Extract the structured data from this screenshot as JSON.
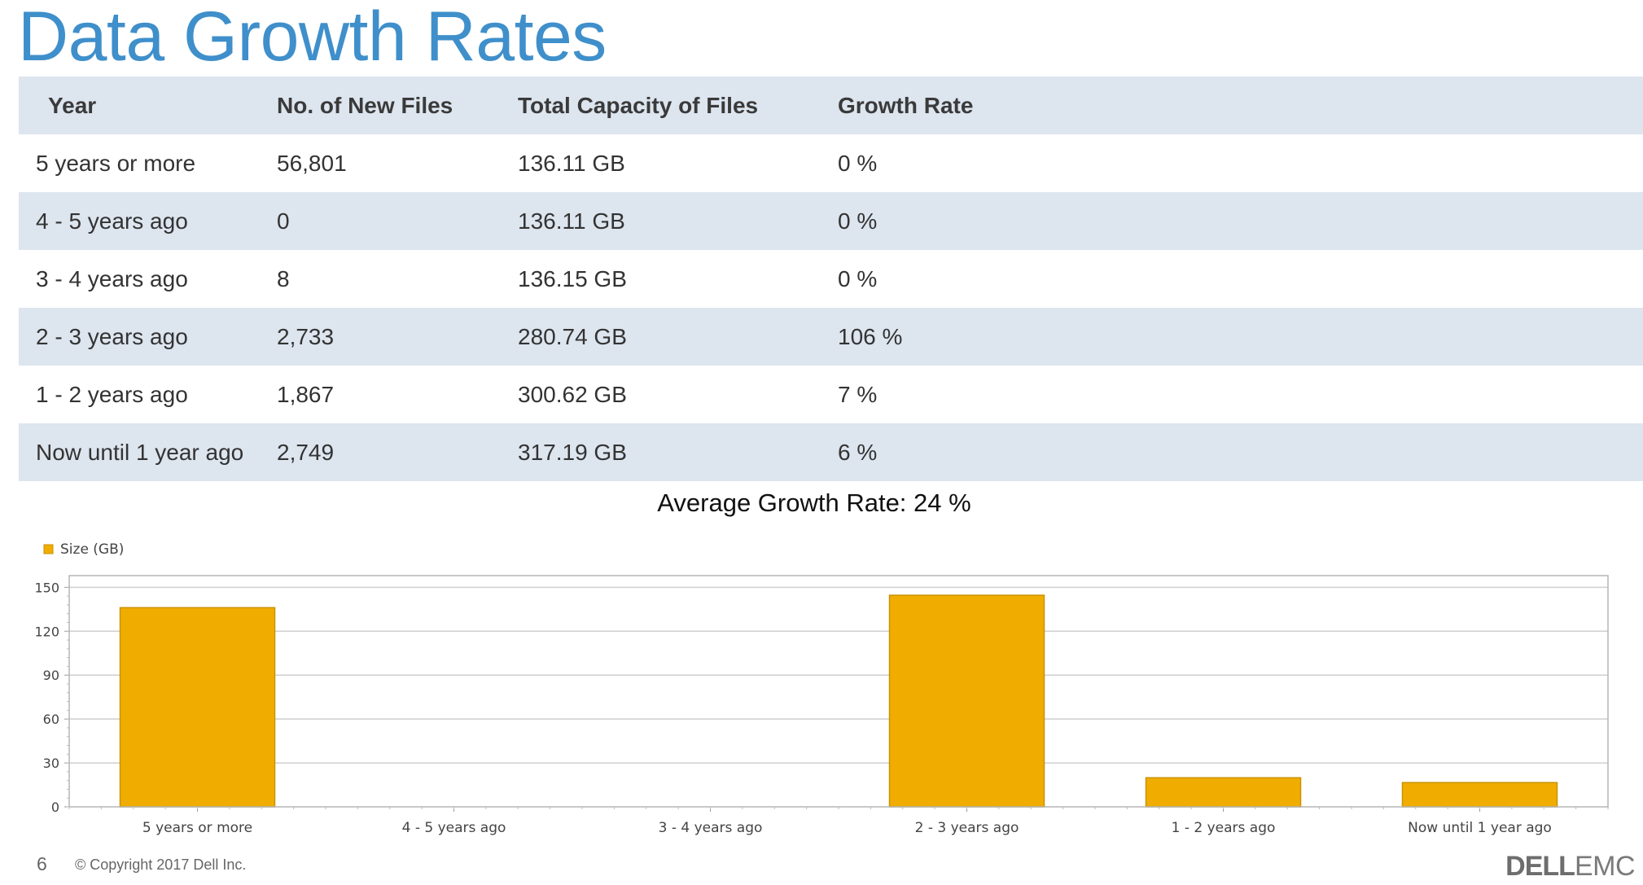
{
  "title": "Data Growth Rates",
  "table": {
    "headers": [
      "Year",
      "No. of New Files",
      "Total Capacity of Files",
      "Growth Rate"
    ],
    "rows": [
      [
        "5 years or more",
        "56,801",
        "136.11 GB",
        "0 %"
      ],
      [
        "4 - 5 years ago",
        "0",
        "136.11 GB",
        "0 %"
      ],
      [
        "3 - 4  years ago",
        "8",
        "136.15 GB",
        "0 %"
      ],
      [
        "2 - 3 years ago",
        "2,733",
        "280.74 GB",
        "106 %"
      ],
      [
        "1 - 2 years ago",
        "1,867",
        "300.62 GB",
        "7 %"
      ],
      [
        "Now until 1 year ago",
        "2,749",
        "317.19 GB",
        "6 %"
      ]
    ]
  },
  "average": "Average Growth Rate: 24 %",
  "chart_data": {
    "type": "bar",
    "categories": [
      "5 years or more",
      "4 - 5 years ago",
      "3 - 4  years ago",
      "2 - 3 years ago",
      "1 - 2 years ago",
      "Now until 1 year ago"
    ],
    "series": [
      {
        "name": "Size (GB)",
        "values": [
          136.11,
          0,
          0.04,
          144.59,
          19.88,
          16.57
        ]
      }
    ],
    "yticks": [
      0,
      30,
      60,
      90,
      120,
      150
    ],
    "ylim": [
      0,
      158
    ],
    "legend": "top-left",
    "grid": true,
    "bar_color": "#f0ad00",
    "bar_stroke": "#c99200"
  },
  "footer": {
    "page": "6",
    "copyright": "© Copyright 2017 Dell Inc.",
    "brand_a": "DELL",
    "brand_b": "EMC"
  }
}
